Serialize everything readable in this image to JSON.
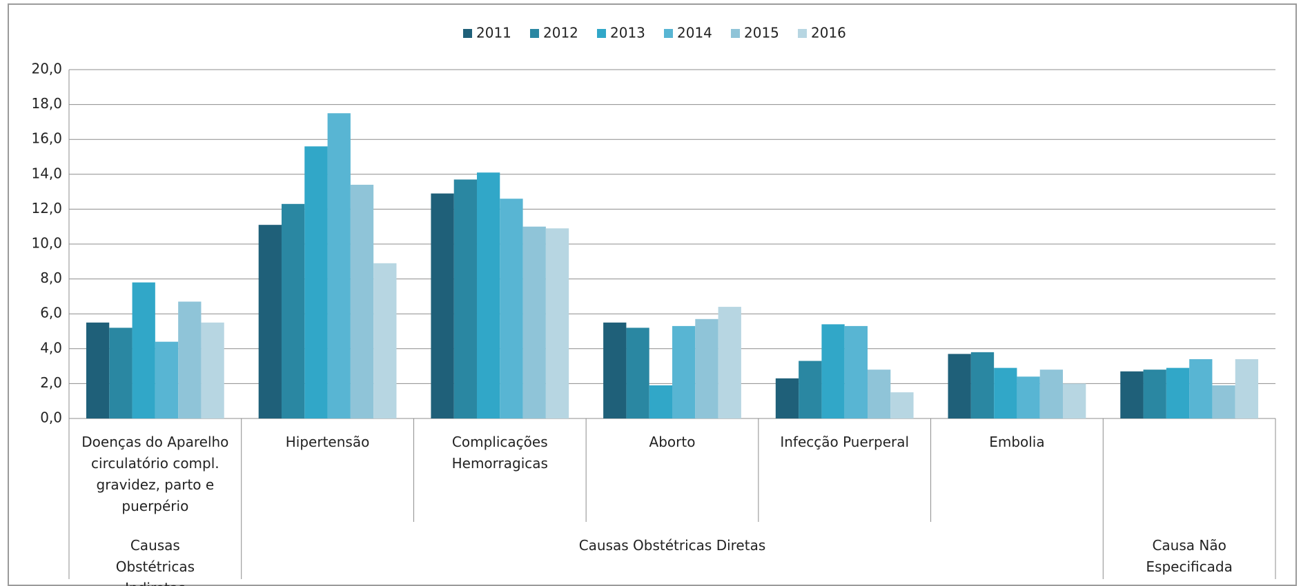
{
  "chart_data": {
    "type": "bar",
    "categories": [
      "Doenças do Aparelho circulatório compl. gravidez, parto e puerpério",
      "Hipertensão",
      "Complicações Hemorragicas",
      "Aborto",
      "Infecção Puerperal",
      "Embolia",
      null
    ],
    "groups": [
      {
        "label": "Causas Obstétricas Indiretas",
        "span": 1
      },
      {
        "label": "Causas Obstétricas Diretas",
        "span": 5
      },
      {
        "label": "Causa Não Especificada",
        "span": 1
      }
    ],
    "series": [
      {
        "name": "2011",
        "color": "#1f6079",
        "values": [
          5.5,
          11.1,
          12.9,
          5.5,
          2.3,
          3.7,
          2.7
        ]
      },
      {
        "name": "2012",
        "color": "#2a87a2",
        "values": [
          5.2,
          12.3,
          13.7,
          5.2,
          3.3,
          3.8,
          2.8
        ]
      },
      {
        "name": "2013",
        "color": "#31a7c8",
        "values": [
          7.8,
          15.6,
          14.1,
          1.9,
          5.4,
          2.9,
          2.9
        ]
      },
      {
        "name": "2014",
        "color": "#58b5d3",
        "values": [
          4.4,
          17.5,
          12.6,
          5.3,
          5.3,
          2.4,
          3.4
        ]
      },
      {
        "name": "2015",
        "color": "#8fc4d8",
        "values": [
          6.7,
          13.4,
          11.0,
          5.7,
          2.8,
          2.8,
          1.9
        ]
      },
      {
        "name": "2016",
        "color": "#b7d6e2",
        "values": [
          5.5,
          8.9,
          10.9,
          6.4,
          1.5,
          2.0,
          3.4
        ]
      }
    ],
    "ylim": [
      0,
      20
    ],
    "yticks": [
      {
        "value": 0,
        "label": "0,0"
      },
      {
        "value": 2,
        "label": "2,0"
      },
      {
        "value": 4,
        "label": "4,0"
      },
      {
        "value": 6,
        "label": "6,0"
      },
      {
        "value": 8,
        "label": "8,0"
      },
      {
        "value": 10,
        "label": "10,0"
      },
      {
        "value": 12,
        "label": "12,0"
      },
      {
        "value": 14,
        "label": "14,0"
      },
      {
        "value": 16,
        "label": "16,0"
      },
      {
        "value": 18,
        "label": "18,0"
      },
      {
        "value": 20,
        "label": "20,0"
      }
    ],
    "grid": true,
    "legend": "top"
  }
}
